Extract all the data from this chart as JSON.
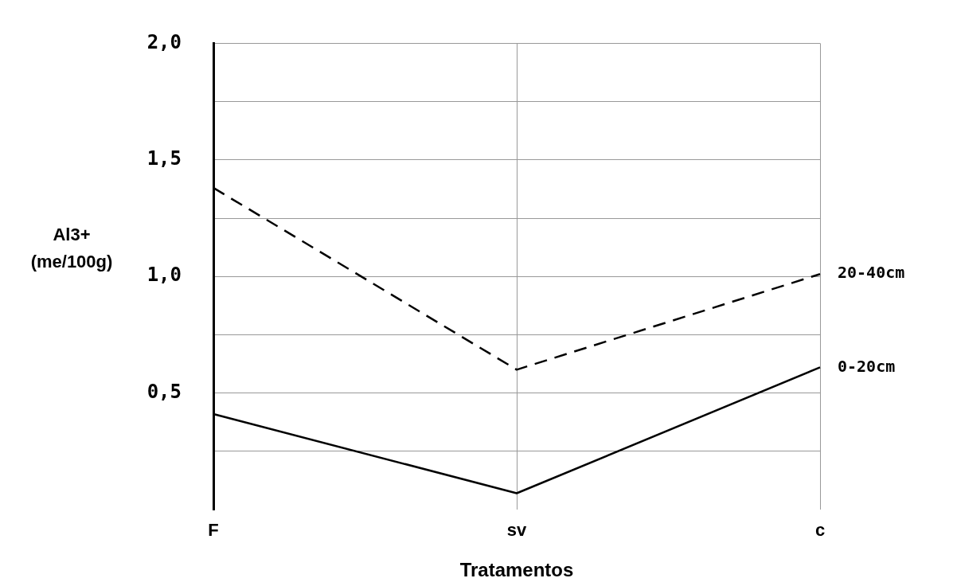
{
  "chart_data": {
    "type": "line",
    "xlabel": "Tratamentos",
    "ylabel": "Al3+ (me/100g)",
    "categories": [
      "F",
      "sv",
      "c"
    ],
    "series": [
      {
        "name": "0-20cm",
        "color": "#000000",
        "line_style": "solid",
        "values": [
          0.41,
          0.07,
          0.61
        ]
      },
      {
        "name": "20-40cm",
        "color": "#000000",
        "line_style": "dashed",
        "values": [
          1.38,
          0.6,
          1.01
        ]
      }
    ],
    "ylim": [
      0,
      2
    ],
    "yticks": [
      {
        "value": 0.25,
        "label": null
      },
      {
        "value": 0.5,
        "label": "0,5"
      },
      {
        "value": 0.75,
        "label": null
      },
      {
        "value": 1,
        "label": "1,0"
      },
      {
        "value": 1.25,
        "label": null
      },
      {
        "value": 1.5,
        "label": "1,5"
      },
      {
        "value": 1.75,
        "label": null
      },
      {
        "value": 2,
        "label": "2,0"
      }
    ],
    "grid": true,
    "legend": false,
    "marker": "none"
  }
}
